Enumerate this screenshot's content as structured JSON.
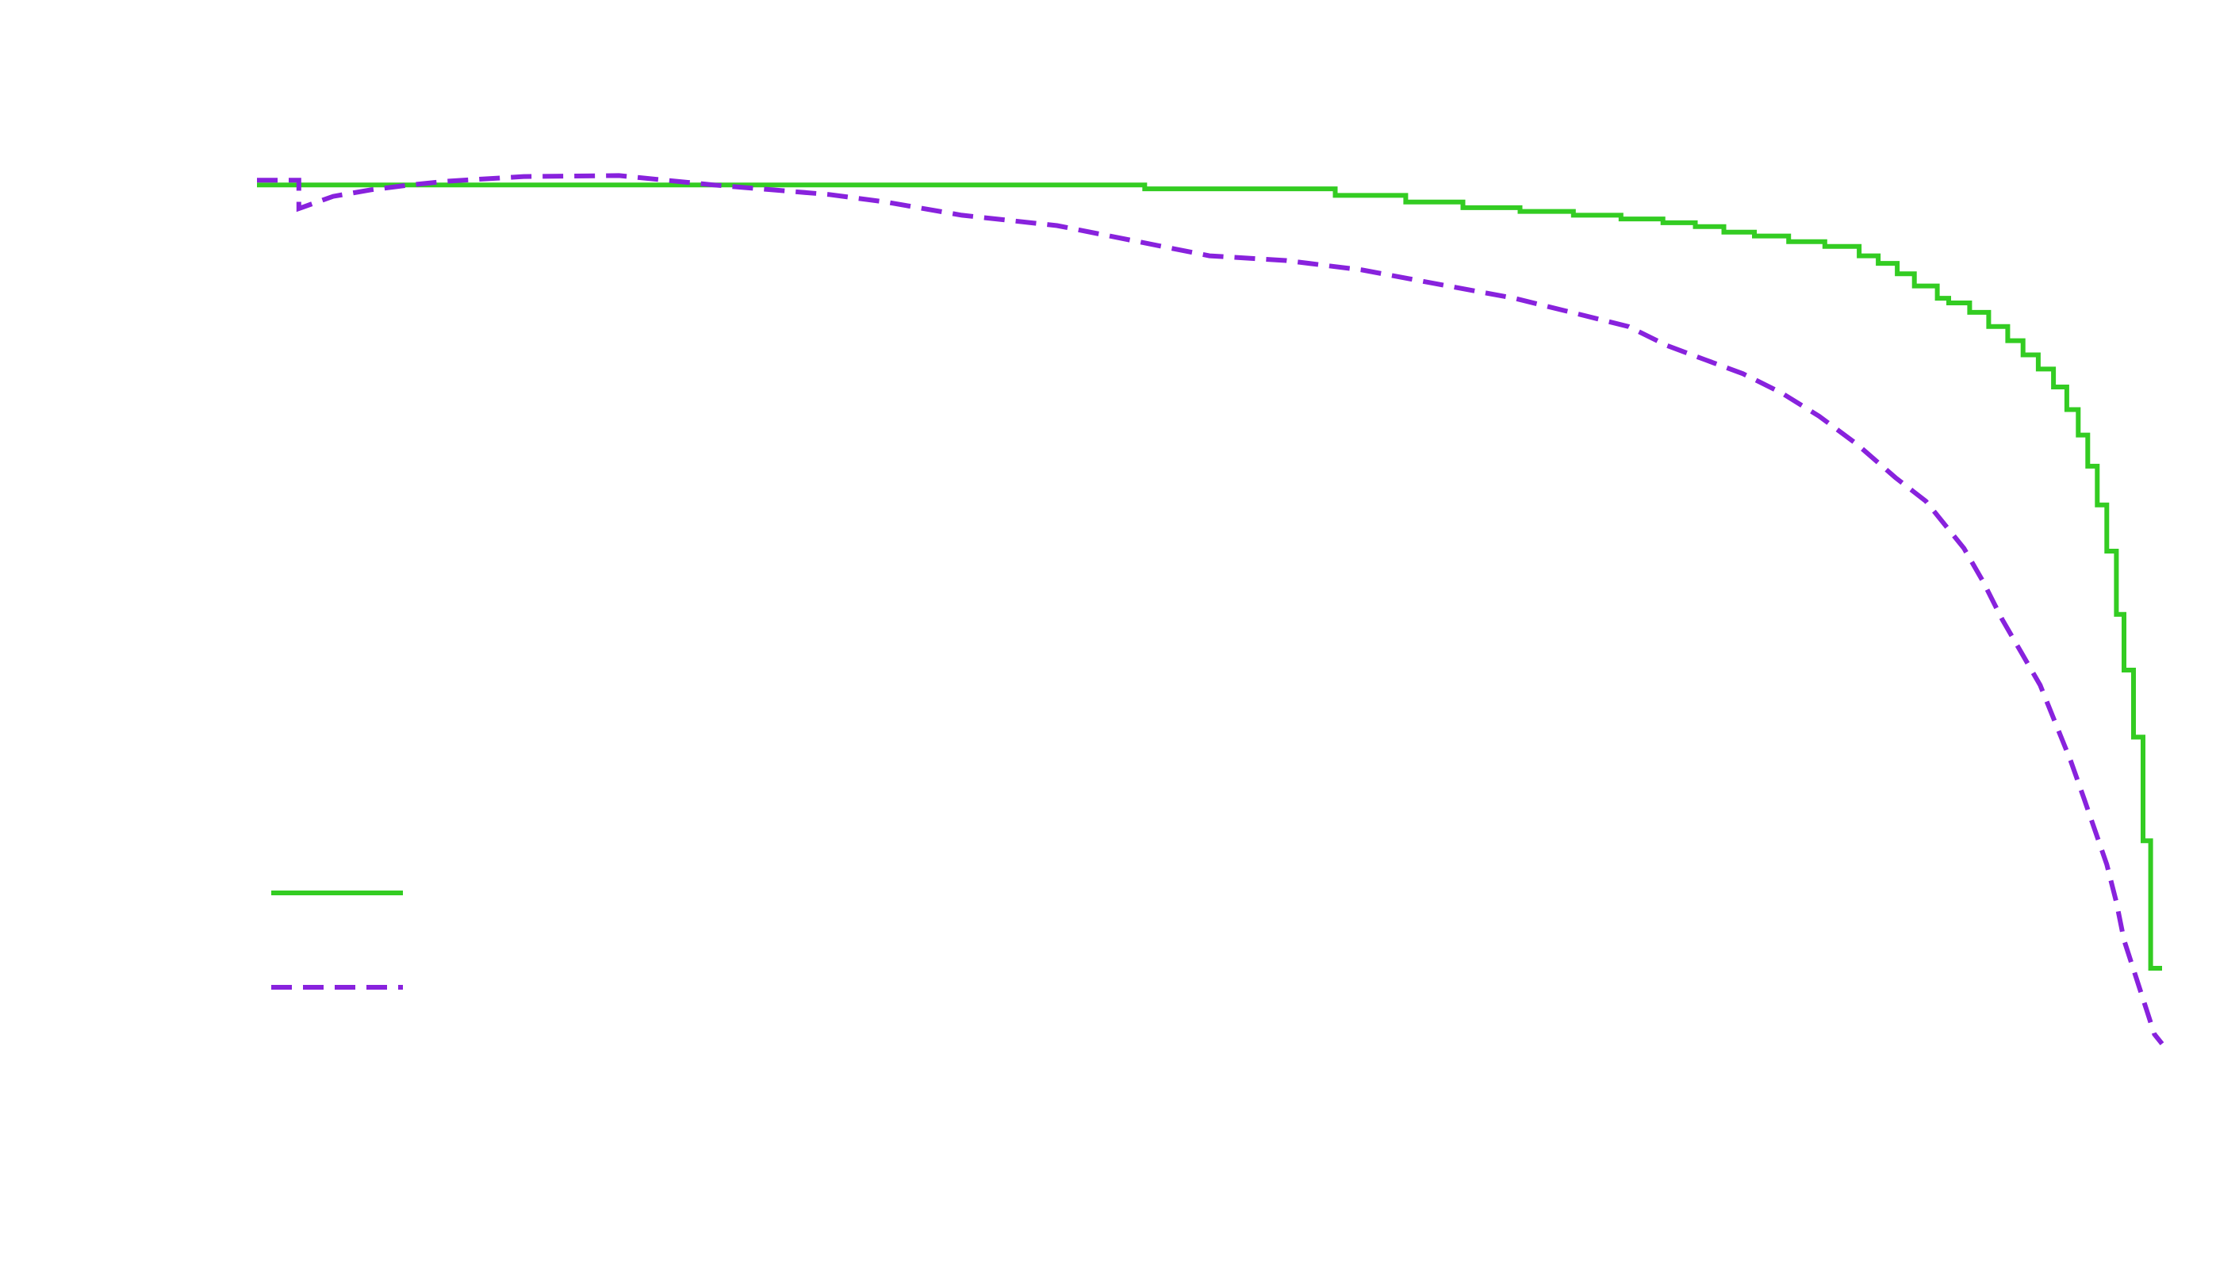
{
  "chart_data": {
    "type": "line",
    "title": "",
    "xlabel": "",
    "ylabel": "",
    "xlim": [
      0,
      100
    ],
    "ylim": [
      0,
      100
    ],
    "grid": false,
    "legend": {
      "position": "bottom-left",
      "entries": [
        {
          "series_index": 0,
          "label": ""
        },
        {
          "series_index": 1,
          "label": ""
        }
      ]
    },
    "series": [
      {
        "style": "solid",
        "color": "#33cc22",
        "step": true,
        "x": [
          0.0,
          2.2,
          46.6,
          56.6,
          60.3,
          63.3,
          66.3,
          69.1,
          71.6,
          73.8,
          75.5,
          77.0,
          78.6,
          80.4,
          82.3,
          84.1,
          85.1,
          86.1,
          87.0,
          88.2,
          88.8,
          89.9,
          90.9,
          91.9,
          92.7,
          93.5,
          94.3,
          95.0,
          95.6,
          96.1,
          96.6,
          97.1,
          97.6,
          98.0,
          98.5,
          99.0,
          99.4,
          100.0
        ],
        "y": [
          93.0,
          93.0,
          92.6,
          91.9,
          91.2,
          90.6,
          90.2,
          89.8,
          89.4,
          89.0,
          88.6,
          88.0,
          87.6,
          87.0,
          86.5,
          85.5,
          84.7,
          83.6,
          82.3,
          81.0,
          80.5,
          79.5,
          78.0,
          76.5,
          75.0,
          73.5,
          71.6,
          69.2,
          66.5,
          63.2,
          59.1,
          54.2,
          47.5,
          41.6,
          34.5,
          23.5,
          10.0,
          10.0
        ]
      },
      {
        "style": "dashed",
        "color": "#8822dd",
        "step": false,
        "x": [
          0.0,
          2.2,
          2.2,
          4.0,
          6.0,
          8.0,
          10.0,
          14.0,
          19.0,
          24.0,
          27.0,
          30.0,
          33.0,
          37.0,
          42.0,
          46.0,
          50.0,
          54.0,
          58.0,
          62.0,
          66.0,
          69.0,
          72.0,
          74.0,
          76.0,
          78.0,
          80.0,
          82.0,
          84.0,
          86.0,
          87.6,
          88.6,
          89.6,
          90.6,
          91.6,
          92.6,
          93.6,
          94.4,
          95.2,
          95.9,
          96.5,
          97.1,
          97.6,
          98.0,
          98.4,
          98.8,
          99.2,
          99.6,
          100.0
        ],
        "y": [
          93.5,
          93.5,
          90.5,
          91.8,
          92.5,
          93.0,
          93.4,
          93.9,
          94.0,
          93.0,
          92.5,
          92.0,
          91.2,
          89.8,
          88.7,
          87.1,
          85.5,
          85.0,
          84.0,
          82.5,
          81.0,
          79.5,
          78.0,
          76.0,
          74.5,
          73.0,
          71.0,
          68.5,
          65.5,
          62.0,
          59.5,
          57.0,
          54.5,
          51.0,
          47.0,
          43.5,
          40.0,
          36.0,
          32.0,
          28.0,
          24.5,
          21.0,
          17.0,
          13.0,
          10.5,
          8.0,
          5.5,
          3.0,
          2.0
        ]
      }
    ]
  }
}
